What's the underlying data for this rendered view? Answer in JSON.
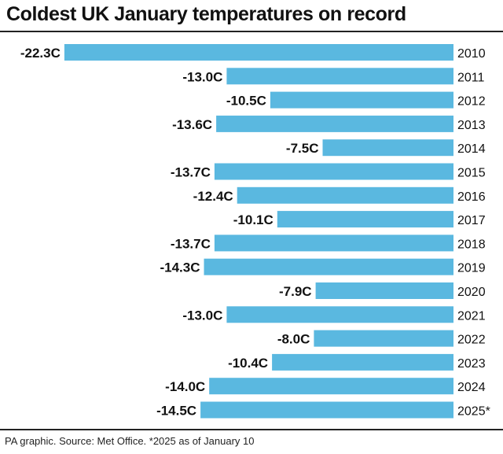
{
  "chart_data": {
    "type": "bar",
    "orientation": "horizontal",
    "title": "Coldest UK January temperatures on record",
    "categories": [
      "2010",
      "2011",
      "2012",
      "2013",
      "2014",
      "2015",
      "2016",
      "2017",
      "2018",
      "2019",
      "2020",
      "2021",
      "2022",
      "2023",
      "2024",
      "2025*"
    ],
    "values": [
      -22.3,
      -13.0,
      -10.5,
      -13.6,
      -7.5,
      -13.7,
      -12.4,
      -10.1,
      -13.7,
      -14.3,
      -7.9,
      -13.0,
      -8.0,
      -10.4,
      -14.0,
      -14.5
    ],
    "value_labels": [
      "-22.3C",
      "-13.0C",
      "-10.5C",
      "-13.6C",
      "-7.5C",
      "-13.7C",
      "-12.4C",
      "-10.1C",
      "-13.7C",
      "-14.3C",
      "-7.9C",
      "-13.0C",
      "-8.0C",
      "-10.4C",
      "-14.0C",
      "-14.5C"
    ],
    "xlim": [
      -22.3,
      0
    ],
    "grid": false,
    "bar_color": "#5ab8e0",
    "source": "PA graphic. Source: Met Office. *2025 as of January 10"
  }
}
